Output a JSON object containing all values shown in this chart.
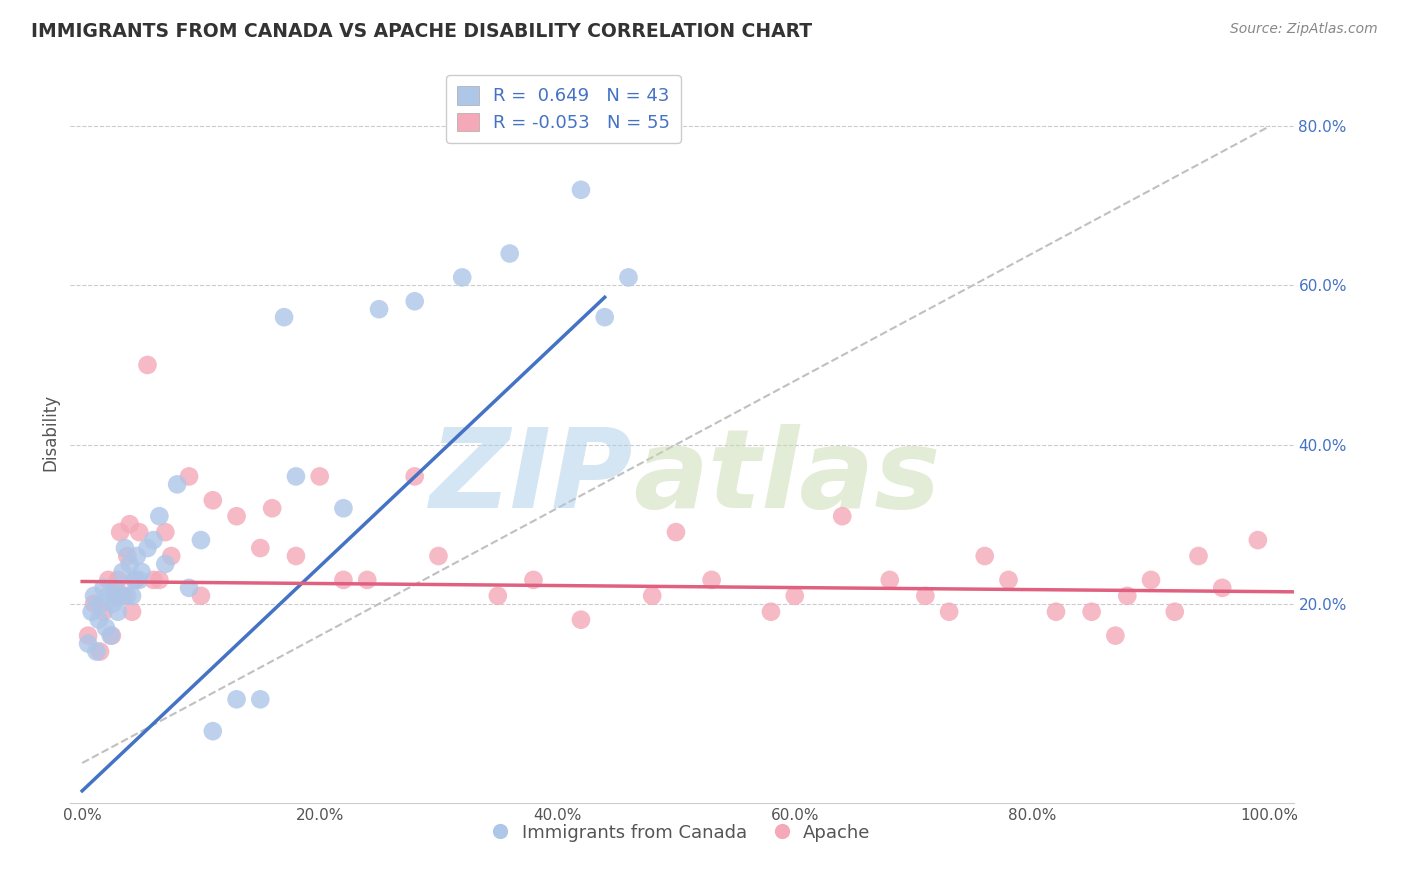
{
  "title": "IMMIGRANTS FROM CANADA VS APACHE DISABILITY CORRELATION CHART",
  "source": "Source: ZipAtlas.com",
  "ylabel": "Disability",
  "xlim": [
    -0.01,
    1.02
  ],
  "ylim": [
    -0.05,
    0.88
  ],
  "xticks": [
    0.0,
    0.2,
    0.4,
    0.6,
    0.8,
    1.0
  ],
  "xticklabels": [
    "0.0%",
    "20.0%",
    "40.0%",
    "60.0%",
    "80.0%",
    "100.0%"
  ],
  "yticks": [
    0.2,
    0.4,
    0.6,
    0.8
  ],
  "yticklabels": [
    "20.0%",
    "40.0%",
    "60.0%",
    "80.0%"
  ],
  "blue_R": 0.649,
  "blue_N": 43,
  "pink_R": -0.053,
  "pink_N": 55,
  "blue_color": "#aec6e8",
  "pink_color": "#f4a8b8",
  "blue_line_color": "#4472c4",
  "pink_line_color": "#e06080",
  "legend_label_blue": "Immigrants from Canada",
  "legend_label_pink": "Apache",
  "watermark_zip": "ZIP",
  "watermark_atlas": "atlas",
  "blue_scatter_x": [
    0.005,
    0.008,
    0.01,
    0.012,
    0.014,
    0.016,
    0.018,
    0.02,
    0.022,
    0.024,
    0.026,
    0.028,
    0.03,
    0.032,
    0.034,
    0.036,
    0.038,
    0.04,
    0.042,
    0.044,
    0.046,
    0.048,
    0.05,
    0.055,
    0.06,
    0.065,
    0.07,
    0.08,
    0.09,
    0.1,
    0.11,
    0.13,
    0.15,
    0.17,
    0.18,
    0.22,
    0.25,
    0.28,
    0.32,
    0.36,
    0.42,
    0.44,
    0.46
  ],
  "blue_scatter_y": [
    0.15,
    0.19,
    0.21,
    0.14,
    0.18,
    0.2,
    0.22,
    0.17,
    0.21,
    0.16,
    0.2,
    0.22,
    0.19,
    0.21,
    0.24,
    0.27,
    0.21,
    0.25,
    0.21,
    0.23,
    0.26,
    0.23,
    0.24,
    0.27,
    0.28,
    0.31,
    0.25,
    0.35,
    0.22,
    0.28,
    0.04,
    0.08,
    0.08,
    0.56,
    0.36,
    0.32,
    0.57,
    0.58,
    0.61,
    0.64,
    0.72,
    0.56,
    0.61
  ],
  "pink_scatter_x": [
    0.005,
    0.01,
    0.015,
    0.018,
    0.022,
    0.025,
    0.028,
    0.03,
    0.032,
    0.035,
    0.038,
    0.04,
    0.042,
    0.045,
    0.048,
    0.055,
    0.06,
    0.065,
    0.07,
    0.075,
    0.09,
    0.1,
    0.11,
    0.13,
    0.15,
    0.16,
    0.18,
    0.2,
    0.22,
    0.24,
    0.28,
    0.3,
    0.35,
    0.38,
    0.42,
    0.48,
    0.5,
    0.53,
    0.58,
    0.6,
    0.64,
    0.68,
    0.71,
    0.73,
    0.76,
    0.78,
    0.82,
    0.85,
    0.87,
    0.88,
    0.9,
    0.92,
    0.94,
    0.96,
    0.99
  ],
  "pink_scatter_y": [
    0.16,
    0.2,
    0.14,
    0.19,
    0.23,
    0.16,
    0.21,
    0.23,
    0.29,
    0.21,
    0.26,
    0.3,
    0.19,
    0.23,
    0.29,
    0.5,
    0.23,
    0.23,
    0.29,
    0.26,
    0.36,
    0.21,
    0.33,
    0.31,
    0.27,
    0.32,
    0.26,
    0.36,
    0.23,
    0.23,
    0.36,
    0.26,
    0.21,
    0.23,
    0.18,
    0.21,
    0.29,
    0.23,
    0.19,
    0.21,
    0.31,
    0.23,
    0.21,
    0.19,
    0.26,
    0.23,
    0.19,
    0.19,
    0.16,
    0.21,
    0.23,
    0.19,
    0.26,
    0.22,
    0.28
  ],
  "blue_line_x": [
    0.0,
    0.44
  ],
  "blue_line_y": [
    -0.035,
    0.585
  ],
  "pink_line_x": [
    0.0,
    1.02
  ],
  "pink_line_y": [
    0.228,
    0.215
  ],
  "diag_line_x": [
    0.0,
    1.0
  ],
  "diag_line_y": [
    0.0,
    0.8
  ],
  "background_color": "#ffffff",
  "grid_color": "#cccccc"
}
